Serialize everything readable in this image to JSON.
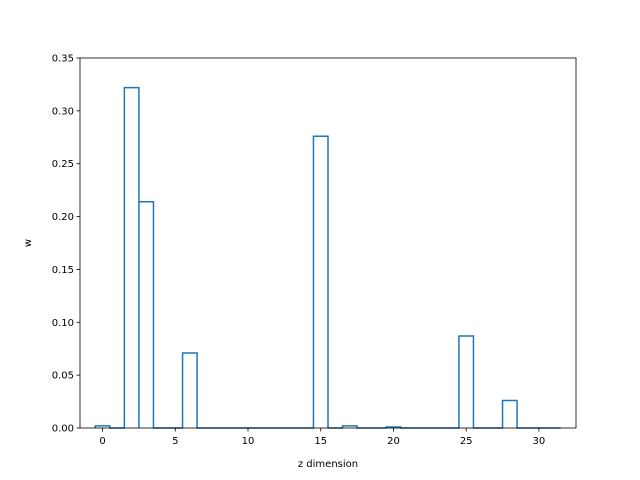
{
  "chart_data": {
    "type": "bar",
    "style": "step-outline",
    "xlabel": "z dimension",
    "ylabel": "w",
    "xlim": [
      -1.55,
      32.55
    ],
    "ylim": [
      0,
      0.35
    ],
    "x_ticks": [
      "0",
      "5",
      "10",
      "15",
      "20",
      "25",
      "30"
    ],
    "y_ticks": [
      "0.00",
      "0.05",
      "0.10",
      "0.15",
      "0.20",
      "0.25",
      "0.30",
      "0.35"
    ],
    "grid": false,
    "x": [
      0,
      1,
      2,
      3,
      4,
      5,
      6,
      7,
      8,
      9,
      10,
      11,
      12,
      13,
      14,
      15,
      16,
      17,
      18,
      19,
      20,
      21,
      22,
      23,
      24,
      25,
      26,
      27,
      28,
      29,
      30,
      31
    ],
    "values": [
      0.002,
      0.0,
      0.322,
      0.214,
      0.0,
      0.0,
      0.071,
      0.0,
      0.0,
      0.0,
      0.0,
      0.0,
      0.0,
      0.0,
      0.0,
      0.276,
      0.0,
      0.002,
      0.0,
      0.0,
      0.001,
      0.0,
      0.0,
      0.0,
      0.0,
      0.087,
      0.0,
      0.0,
      0.026,
      0.0,
      0.0,
      0.0
    ],
    "colors": {
      "line": "#1f77b4",
      "axes": "#000000",
      "background": "#ffffff"
    }
  }
}
